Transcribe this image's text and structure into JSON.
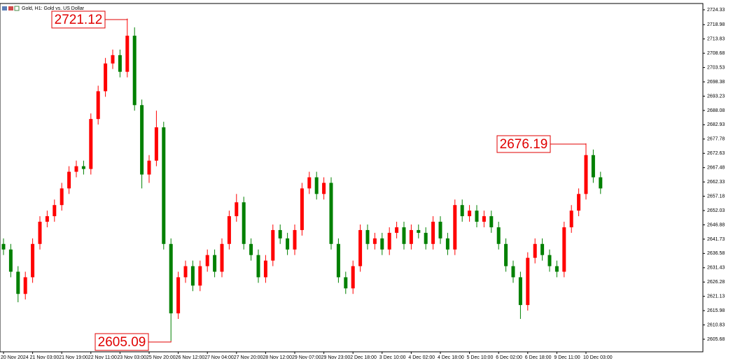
{
  "chart_data": {
    "type": "candlestick",
    "title": "Gold, H1:  Gold vs. US Dollar",
    "up_color": "#ff0000",
    "down_color": "#008000",
    "open": [
      2640,
      2638,
      2630,
      2622,
      2628,
      2640,
      2648,
      2650,
      2654,
      2660,
      2666,
      2668,
      2667,
      2685,
      2695,
      2705,
      2708,
      2702,
      2715,
      2690,
      2665,
      2670,
      2682,
      2640,
      2615,
      2628,
      2632,
      2625,
      2632,
      2636,
      2630,
      2640,
      2650,
      2655,
      2640,
      2636,
      2628,
      2634,
      2645,
      2642,
      2638,
      2645,
      2660,
      2664,
      2658,
      2662,
      2640,
      2628,
      2624,
      2632,
      2645,
      2640,
      2642,
      2638,
      2644,
      2646,
      2640,
      2645,
      2644,
      2640,
      2648,
      2642,
      2638,
      2654,
      2650,
      2652,
      2648,
      2650,
      2646,
      2640,
      2632,
      2628,
      2618,
      2635,
      2640,
      2636,
      2632,
      2630,
      2646,
      2652,
      2658,
      2672,
      2664
    ],
    "high": [
      2642,
      2640,
      2632,
      2630,
      2642,
      2650,
      2652,
      2656,
      2662,
      2668,
      2670,
      2670,
      2687,
      2697,
      2707,
      2710,
      2710,
      2721.12,
      2718,
      2692,
      2672,
      2688,
      2684,
      2642,
      2630,
      2634,
      2634,
      2634,
      2638,
      2638,
      2642,
      2652,
      2658,
      2657,
      2642,
      2638,
      2636,
      2647,
      2647,
      2644,
      2647,
      2662,
      2666,
      2666,
      2664,
      2664,
      2642,
      2630,
      2634,
      2647,
      2647,
      2644,
      2644,
      2646,
      2648,
      2648,
      2647,
      2647,
      2646,
      2650,
      2650,
      2644,
      2656,
      2656,
      2654,
      2654,
      2652,
      2652,
      2648,
      2642,
      2634,
      2630,
      2637,
      2642,
      2642,
      2638,
      2634,
      2648,
      2654,
      2660,
      2676.19,
      2674,
      2666
    ],
    "low": [
      2636,
      2628,
      2619,
      2620,
      2626,
      2638,
      2646,
      2648,
      2652,
      2658,
      2664,
      2665,
      2665,
      2683,
      2693,
      2703,
      2700,
      2700,
      2688,
      2660,
      2662,
      2668,
      2638,
      2605.09,
      2613,
      2626,
      2623,
      2623,
      2630,
      2628,
      2628,
      2638,
      2648,
      2638,
      2634,
      2626,
      2626,
      2632,
      2640,
      2636,
      2636,
      2643,
      2658,
      2656,
      2656,
      2638,
      2626,
      2622,
      2622,
      2630,
      2638,
      2638,
      2636,
      2636,
      2642,
      2638,
      2638,
      2642,
      2638,
      2638,
      2640,
      2636,
      2636,
      2648,
      2648,
      2646,
      2646,
      2644,
      2638,
      2630,
      2626,
      2613,
      2616,
      2633,
      2634,
      2630,
      2628,
      2628,
      2644,
      2650,
      2656,
      2662,
      2658
    ],
    "close": [
      2638,
      2630,
      2622,
      2628,
      2640,
      2648,
      2650,
      2654,
      2660,
      2666,
      2668,
      2667,
      2685,
      2695,
      2705,
      2708,
      2702,
      2715,
      2690,
      2665,
      2670,
      2682,
      2640,
      2615,
      2628,
      2632,
      2625,
      2632,
      2636,
      2630,
      2640,
      2650,
      2655,
      2640,
      2636,
      2628,
      2634,
      2645,
      2642,
      2638,
      2645,
      2660,
      2664,
      2658,
      2662,
      2640,
      2628,
      2624,
      2632,
      2645,
      2640,
      2642,
      2638,
      2644,
      2646,
      2640,
      2645,
      2644,
      2640,
      2648,
      2642,
      2638,
      2654,
      2650,
      2652,
      2648,
      2650,
      2646,
      2640,
      2632,
      2628,
      2618,
      2635,
      2640,
      2636,
      2632,
      2630,
      2646,
      2652,
      2658,
      2672,
      2664,
      2660
    ],
    "ylim": [
      2601.15,
      2726.6
    ],
    "yticks": [
      2724.33,
      2718.98,
      2713.83,
      2708.68,
      2703.53,
      2698.38,
      2693.23,
      2688.08,
      2682.93,
      2677.78,
      2672.63,
      2667.48,
      2662.33,
      2657.18,
      2652.03,
      2646.88,
      2641.73,
      2636.58,
      2631.43,
      2626.28,
      2621.13,
      2615.98,
      2610.83,
      2605.68
    ],
    "xticks": [
      {
        "value": 0,
        "label": "20 Nov 2024"
      },
      {
        "value": 4,
        "label": "21 Nov 03:00"
      },
      {
        "value": 8,
        "label": "21 Nov 19:00"
      },
      {
        "value": 12,
        "label": "22 Nov 11:00"
      },
      {
        "value": 16,
        "label": "23 Nov 03:00"
      },
      {
        "value": 20,
        "label": "25 Nov 20:00"
      },
      {
        "value": 24,
        "label": "26 Nov 12:00"
      },
      {
        "value": 28,
        "label": "27 Nov 04:00"
      },
      {
        "value": 32,
        "label": "27 Nov 20:00"
      },
      {
        "value": 36,
        "label": "28 Nov 12:00"
      },
      {
        "value": 40,
        "label": "29 Nov 07:00"
      },
      {
        "value": 44,
        "label": "29 Nov 23:00"
      },
      {
        "value": 48,
        "label": "2 Dec 18:00"
      },
      {
        "value": 52,
        "label": "3 Dec 10:00"
      },
      {
        "value": 56,
        "label": "4 Dec 02:00"
      },
      {
        "value": 60,
        "label": "4 Dec 18:00"
      },
      {
        "value": 64,
        "label": "5 Dec 10:00"
      },
      {
        "value": 68,
        "label": "6 Dec 02:00"
      },
      {
        "value": 72,
        "label": "6 Dec 18:00"
      },
      {
        "value": 76,
        "label": "9 Dec 11:00"
      },
      {
        "value": 80,
        "label": "10 Dec 03:00"
      }
    ],
    "annotations": [
      2721.12,
      2605.09,
      2676.19
    ]
  }
}
